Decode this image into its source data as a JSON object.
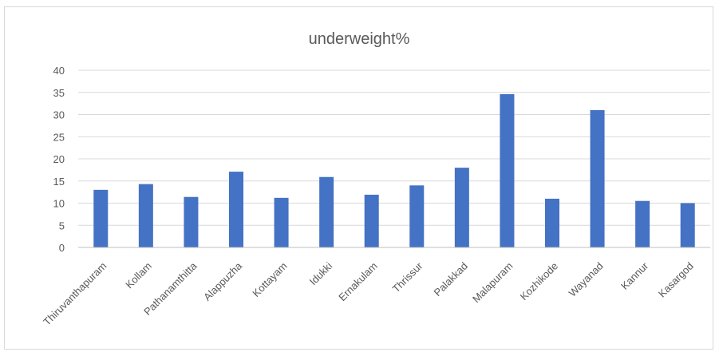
{
  "chart_data": {
    "type": "bar",
    "title": "underweight%",
    "categories": [
      "Thiruvanthapuram",
      "Kollam",
      "Pathanamthitta",
      "Alappuzha",
      "Kottayam",
      "Idukki",
      "Ernakulam",
      "Thrissur",
      "Palakkad",
      "Malapuram",
      "Kozhikode",
      "Wayanad",
      "Kannur",
      "Kasargod"
    ],
    "values": [
      13,
      14.3,
      11.4,
      17.1,
      11.2,
      15.9,
      11.9,
      14,
      18,
      34.6,
      11,
      31,
      10.5,
      10
    ],
    "ylim": [
      0,
      40
    ],
    "yticks": [
      0,
      5,
      10,
      15,
      20,
      25,
      30,
      35,
      40
    ],
    "grid": true,
    "legend": "none",
    "colors": {
      "bar": "#4472c4",
      "grid": "#d9d9d9",
      "text": "#595959"
    }
  }
}
